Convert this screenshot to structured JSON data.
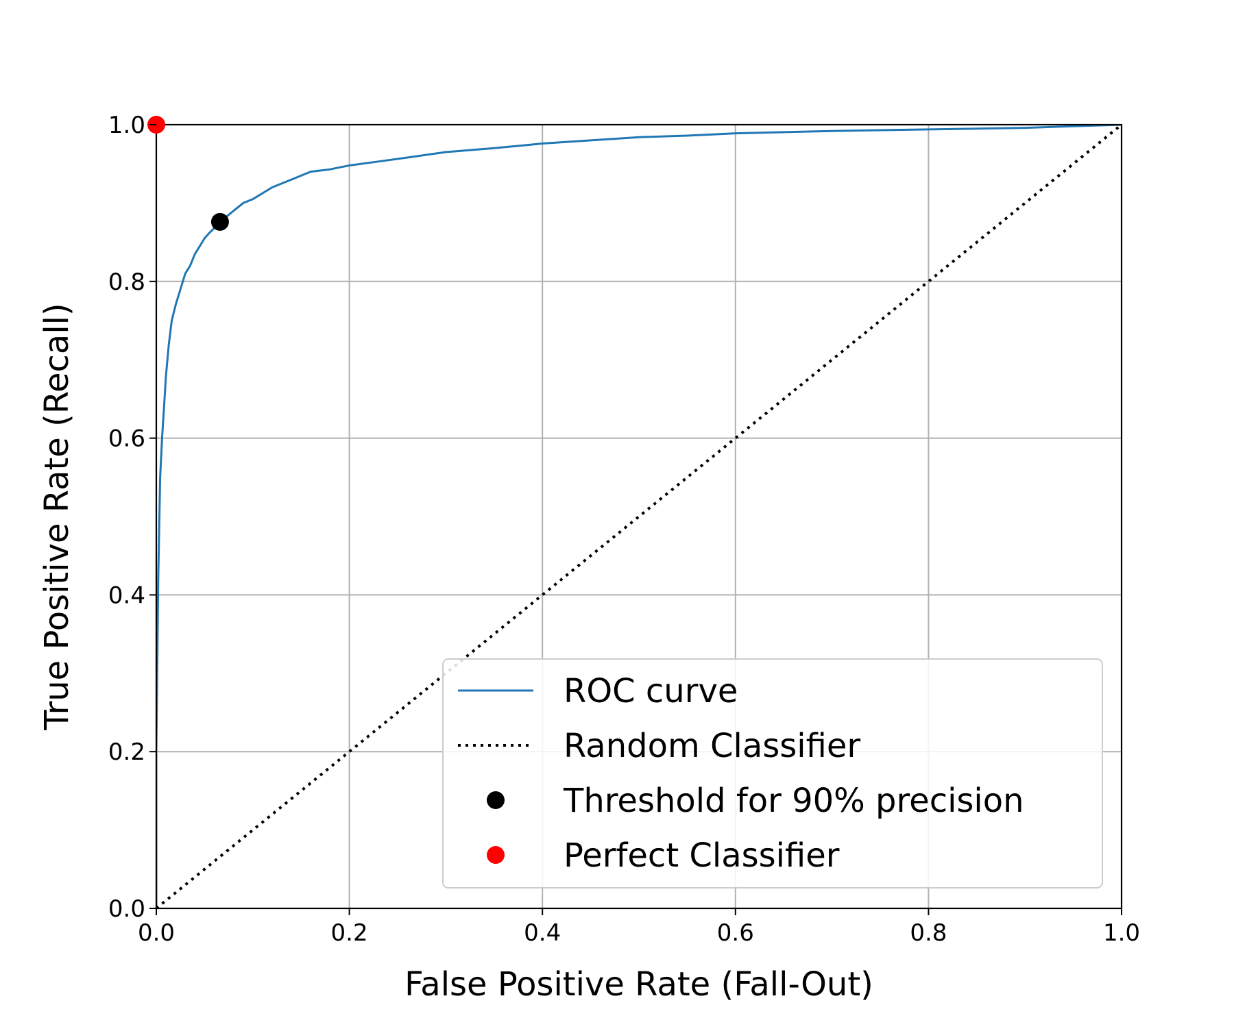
{
  "chart_data": {
    "type": "line",
    "title": "",
    "xlabel": "False Positive Rate (Fall-Out)",
    "ylabel": "True Positive Rate (Recall)",
    "xlim": [
      0.0,
      1.0
    ],
    "ylim": [
      0.0,
      1.0
    ],
    "xticks": [
      0.0,
      0.2,
      0.4,
      0.6,
      0.8,
      1.0
    ],
    "yticks": [
      0.0,
      0.2,
      0.4,
      0.6,
      0.8,
      1.0
    ],
    "xtick_labels": [
      "0.0",
      "0.2",
      "0.4",
      "0.6",
      "0.8",
      "1.0"
    ],
    "ytick_labels": [
      "0.0",
      "0.2",
      "0.4",
      "0.6",
      "0.8",
      "1.0"
    ],
    "grid": true,
    "legend_position": "lower-right",
    "series": [
      {
        "name": "ROC curve",
        "kind": "line",
        "style": "solid",
        "color": "#1f77b4",
        "x": [
          0.0,
          0.0,
          0.002,
          0.004,
          0.006,
          0.008,
          0.01,
          0.013,
          0.016,
          0.02,
          0.025,
          0.03,
          0.035,
          0.04,
          0.045,
          0.05,
          0.055,
          0.06,
          0.066,
          0.07,
          0.08,
          0.09,
          0.1,
          0.12,
          0.14,
          0.16,
          0.18,
          0.2,
          0.23,
          0.26,
          0.3,
          0.35,
          0.4,
          0.45,
          0.5,
          0.55,
          0.6,
          0.7,
          0.8,
          0.9,
          1.0
        ],
        "y": [
          0.0,
          0.2,
          0.42,
          0.55,
          0.6,
          0.64,
          0.68,
          0.72,
          0.75,
          0.77,
          0.79,
          0.81,
          0.82,
          0.835,
          0.845,
          0.855,
          0.862,
          0.868,
          0.876,
          0.88,
          0.89,
          0.9,
          0.905,
          0.92,
          0.93,
          0.94,
          0.943,
          0.948,
          0.953,
          0.958,
          0.965,
          0.97,
          0.976,
          0.98,
          0.984,
          0.986,
          0.989,
          0.992,
          0.994,
          0.996,
          1.0
        ]
      },
      {
        "name": "Random Classifier",
        "kind": "line",
        "style": "dotted",
        "color": "#000000",
        "x": [
          0.0,
          1.0
        ],
        "y": [
          0.0,
          1.0
        ]
      },
      {
        "name": "Threshold for 90% precision",
        "kind": "point",
        "color": "#000000",
        "x": [
          0.066
        ],
        "y": [
          0.876
        ]
      },
      {
        "name": "Perfect Classifier",
        "kind": "point",
        "color": "#ff0000",
        "x": [
          0.0
        ],
        "y": [
          1.0
        ]
      }
    ]
  }
}
